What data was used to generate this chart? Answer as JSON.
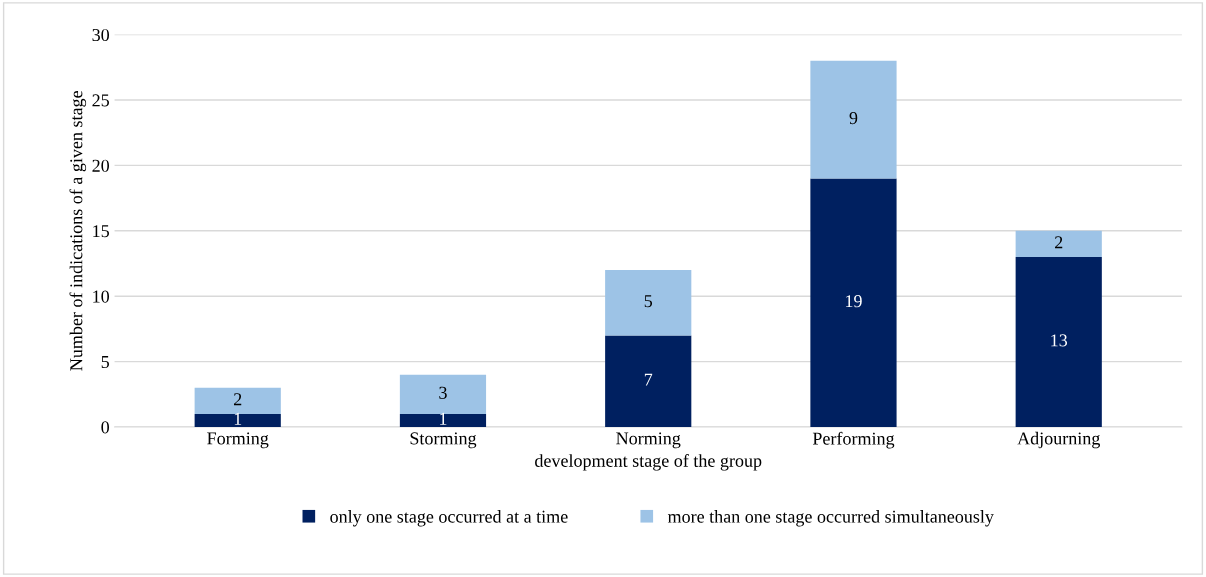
{
  "chart_data": {
    "type": "bar",
    "stacked": true,
    "xlabel": "development stage of the group",
    "ylabel": "Number of indications of a given stage",
    "categories": [
      "Forming",
      "Storming",
      "Norming",
      "Performing",
      "Adjourning"
    ],
    "series": [
      {
        "name": "only one stage occurred at a time",
        "color": "#002060",
        "values": [
          1,
          1,
          7,
          19,
          13
        ]
      },
      {
        "name": "more than one stage occurred simultaneously",
        "color": "#9dc3e6",
        "values": [
          2,
          3,
          5,
          9,
          2
        ]
      }
    ],
    "ylim": [
      0,
      30
    ],
    "yticks": [
      0,
      5,
      10,
      15,
      20,
      25,
      30
    ],
    "grid": "y",
    "legend": "bottom",
    "data_labels": true
  }
}
